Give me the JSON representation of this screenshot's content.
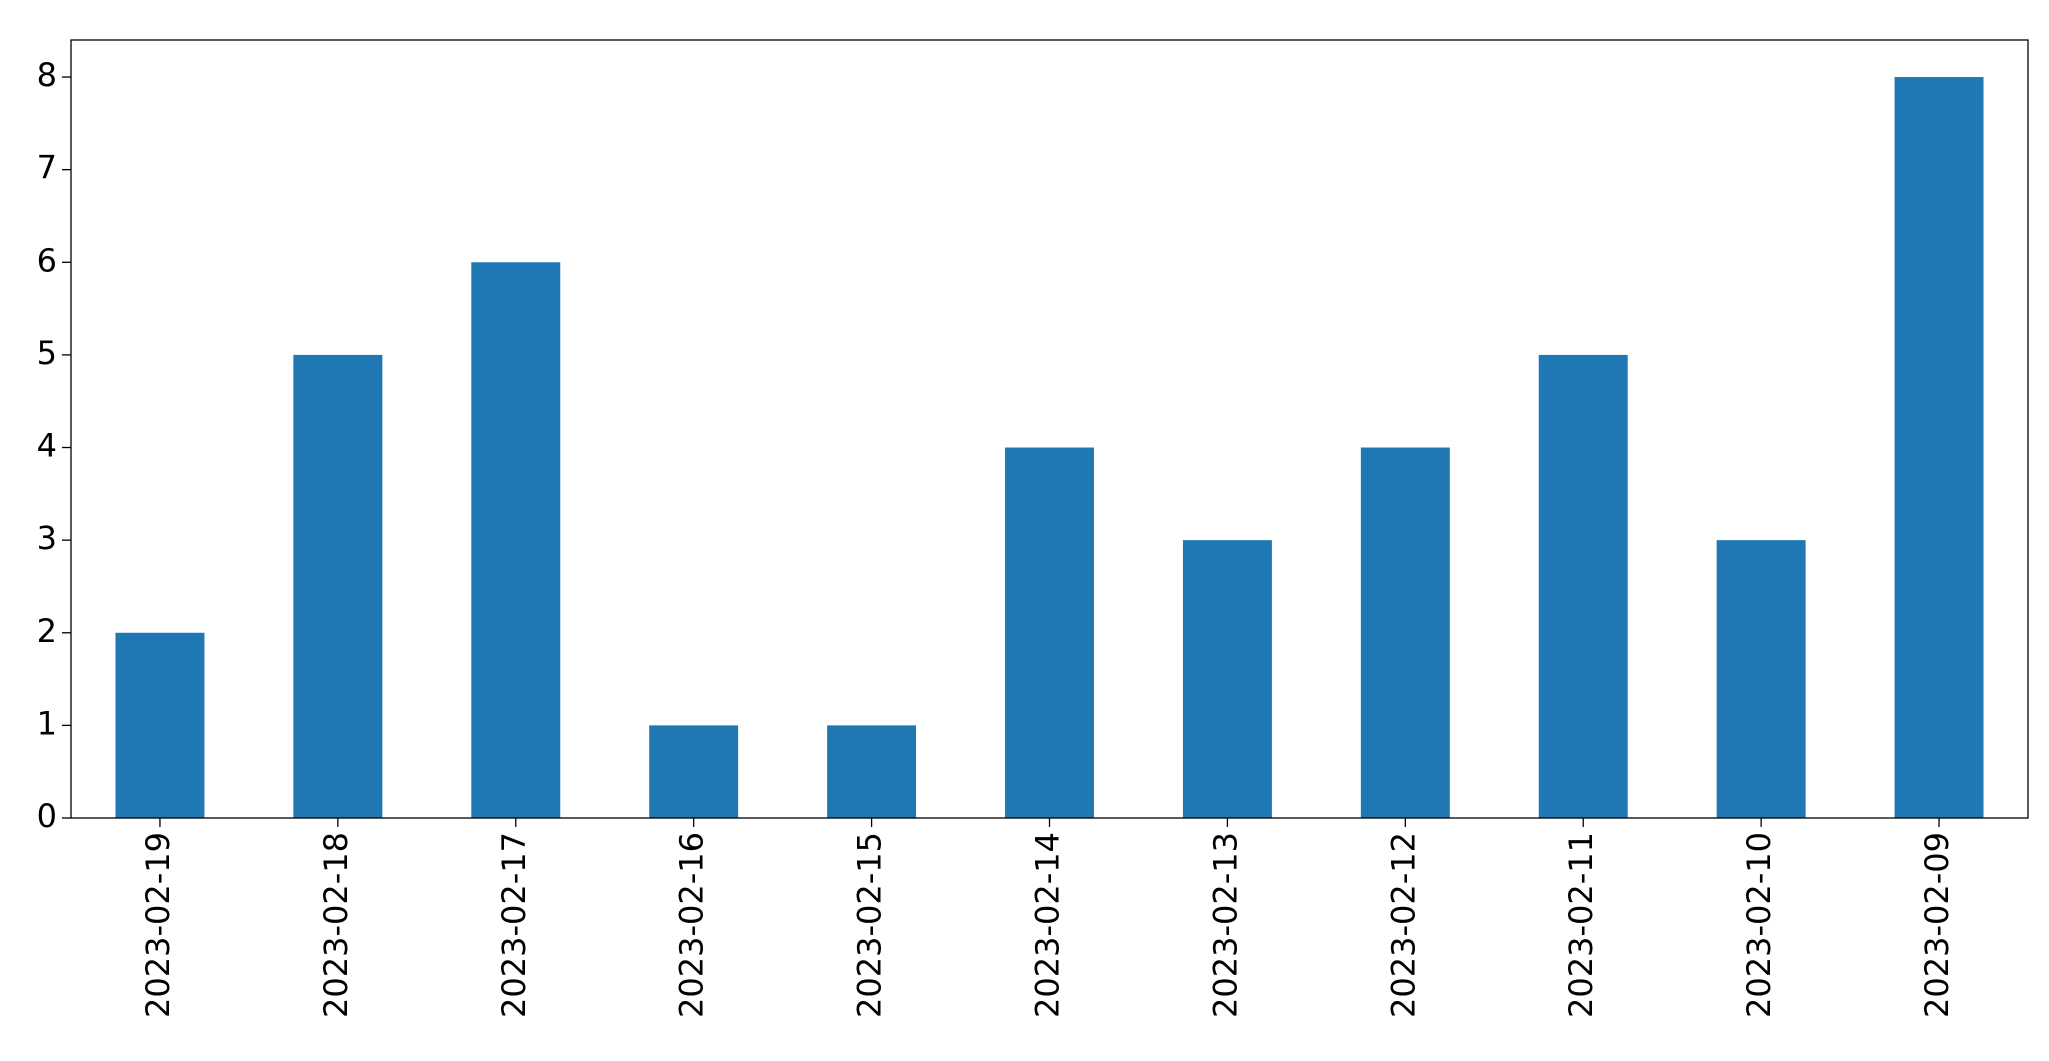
{
  "chart_data": {
    "type": "bar",
    "categories": [
      "2023-02-19",
      "2023-02-18",
      "2023-02-17",
      "2023-02-16",
      "2023-02-15",
      "2023-02-14",
      "2023-02-13",
      "2023-02-12",
      "2023-02-11",
      "2023-02-10",
      "2023-02-09"
    ],
    "values": [
      2,
      5,
      6,
      1,
      1,
      4,
      3,
      4,
      5,
      3,
      8
    ],
    "color": "#1f77b4",
    "ylim": [
      0,
      8.4
    ],
    "yticks": [
      0,
      1,
      2,
      3,
      4,
      5,
      6,
      7,
      8
    ],
    "grid": false
  }
}
